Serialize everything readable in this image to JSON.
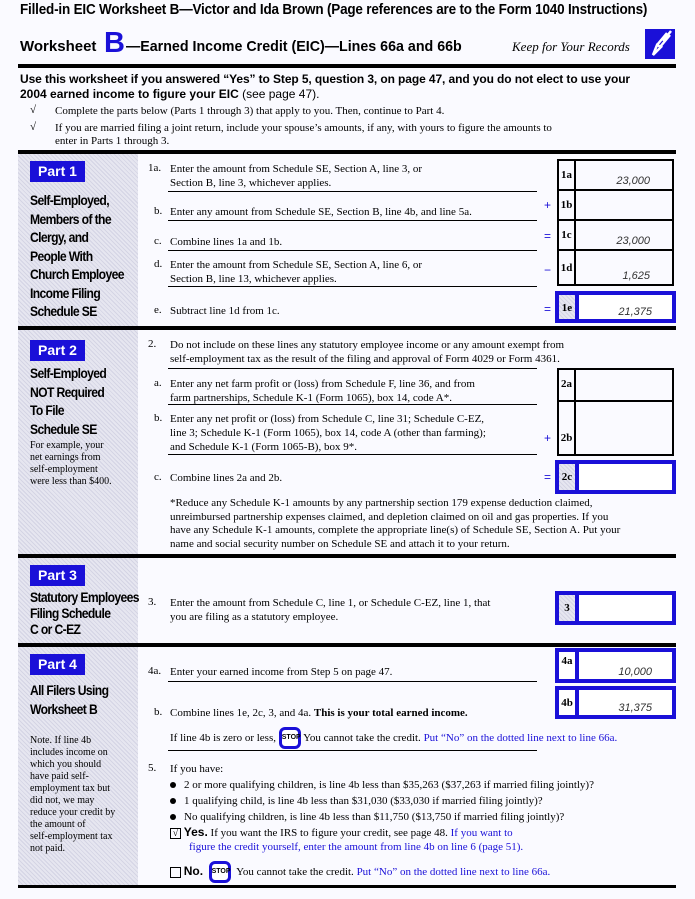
{
  "title": "Filled-in EIC Worksheet B—Victor and Ida Brown (Page references are to the Form 1040 Instructions)",
  "header": {
    "worksheet": "Worksheet",
    "letter": "B",
    "subtitle": "—Earned Income Credit (EIC)—Lines 66a and 66b",
    "keep": "Keep for Your Records",
    "icon": "pencil-icon",
    "accent": "#1a10d8"
  },
  "intro": {
    "line1": "Use this worksheet if you answered “Yes” to Step 5, question 3, on page 47, and you do not elect to use your",
    "line2a": "2004 earned income to figure your ",
    "line2b": "EIC",
    "line2c": " (see page 47).",
    "check_mark": "√",
    "check1": "Complete the parts below (Parts 1 through 3) that apply to you. Then, continue to Part 4.",
    "check2a": "If you are married filing a joint return, include your spouse’s amounts, if any, with yours to figure the amounts to",
    "check2b": "enter in Parts 1 through 3."
  },
  "part1": {
    "label": "Part 1",
    "heading": [
      "Self-Employed,",
      "Members of the",
      "Clergy, and",
      "People With",
      "Church Employee",
      "Income Filing",
      "Schedule SE"
    ],
    "lines": [
      {
        "num": "1a.",
        "text": [
          "Enter the amount from Schedule SE, Section A, line 3, or",
          "Section B, line 3, whichever applies."
        ],
        "box": "1a",
        "value": "23,000",
        "sign": ""
      },
      {
        "num": "b.",
        "text": [
          "Enter any amount from Schedule SE, Section B, line 4b, and line 5a."
        ],
        "box": "1b",
        "value": "",
        "sign": "+"
      },
      {
        "num": "c.",
        "text": [
          "Combine lines 1a and 1b."
        ],
        "box": "1c",
        "value": "23,000",
        "sign": "="
      },
      {
        "num": "d.",
        "text": [
          "Enter the amount from Schedule SE, Section A, line 6, or",
          "Section B, line 13, whichever applies."
        ],
        "box": "1d",
        "value": "1,625",
        "sign": "−"
      },
      {
        "num": "e.",
        "text": [
          "Subtract line 1d from 1c."
        ],
        "box": "1e",
        "value": "21,375",
        "sign": "="
      }
    ]
  },
  "part2": {
    "label": "Part 2",
    "heading": [
      "Self-Employed",
      "NOT Required",
      "To File",
      "Schedule SE"
    ],
    "note": [
      "For example, your",
      "net earnings from",
      "self-employment",
      "were less than $400."
    ],
    "intro_num": "2.",
    "intro": [
      "Do not include on these lines any statutory employee income or any amount exempt from",
      "self-employment tax as the result of the filing and approval of Form 4029 or Form 4361."
    ],
    "lines": [
      {
        "num": "a.",
        "text": [
          "Enter any net farm profit or (loss) from Schedule F, line 36, and from",
          "farm partnerships, Schedule K-1 (Form 1065), box 14, code A*."
        ],
        "box": "2a",
        "value": "",
        "sign": ""
      },
      {
        "num": "b.",
        "text": [
          "Enter any net profit or (loss) from Schedule C, line 31; Schedule C-EZ,",
          "line 3; Schedule K-1 (Form 1065), box 14, code A (other than farming);",
          "and Schedule K-1 (Form 1065-B), box 9*."
        ],
        "box": "2b",
        "value": "",
        "sign": "+"
      },
      {
        "num": "c.",
        "text": [
          "Combine lines 2a and 2b."
        ],
        "box": "2c",
        "value": "",
        "sign": "="
      }
    ],
    "footnote": [
      "*Reduce any Schedule K-1 amounts by any partnership section 179 expense deduction claimed,",
      "unreimbursed partnership expenses claimed, and depletion claimed on oil and gas properties. If you",
      "have any Schedule K-1 amounts, complete the appropriate line(s) of Schedule SE, Section A. Put your",
      "name and social security number on Schedule SE and attach it to your return."
    ]
  },
  "part3": {
    "label": "Part 3",
    "heading": [
      "Statutory Employees",
      "Filing Schedule",
      "C or C-EZ"
    ],
    "num": "3.",
    "text": [
      "Enter the amount from Schedule C, line 1, or Schedule C-EZ, line 1, that",
      "you are filing as a statutory employee."
    ],
    "box": "3",
    "value": ""
  },
  "part4": {
    "label": "Part 4",
    "heading": [
      "All Filers Using",
      "Worksheet B"
    ],
    "note": [
      "Note. If line 4b",
      "includes income on",
      "which you should",
      "have paid self-",
      "employment tax but",
      "did not, we may",
      "reduce your credit by",
      "the amount of",
      "self-employment tax",
      "not paid."
    ],
    "line4a": {
      "num": "4a.",
      "text": "Enter your earned income from Step 5 on page 47.",
      "box": "4a",
      "value": "10,000"
    },
    "line4b": {
      "num": "b.",
      "text": "Combine lines 1e, 2c, 3, and 4a. ",
      "bold": "This is your total earned income.",
      "box": "4b",
      "value": "31,375"
    },
    "zero": {
      "text": "If line 4b is zero or less,",
      "stop": "STOP",
      "cannot": "You cannot take the credit.",
      "blue": "Put “No” on the dotted line next to line 66a."
    },
    "q5": {
      "num": "5.",
      "text": "If you have:",
      "bullets": [
        "2 or more qualifying children, is line 4b less than $35,263 ($37,263 if married filing jointly)?",
        "1 qualifying child, is line 4b less than $31,030 ($33,030 if married filing jointly)?",
        "No qualifying children, is line 4b less than $11,750 ($13,750 if married filing jointly)?"
      ],
      "yes": {
        "checked": true,
        "mark": "√",
        "label": "Yes.",
        "text": "If you want the IRS to figure your credit, see page 48.",
        "blue1": "If you want to",
        "blue2": "figure the credit yourself, enter the amount from line 4b on line 6 (page 51)."
      },
      "no": {
        "checked": false,
        "label": "No.",
        "stop": "STOP",
        "text": "You cannot take the credit.",
        "blue": "Put “No” on the dotted line next to line 66a."
      }
    }
  }
}
